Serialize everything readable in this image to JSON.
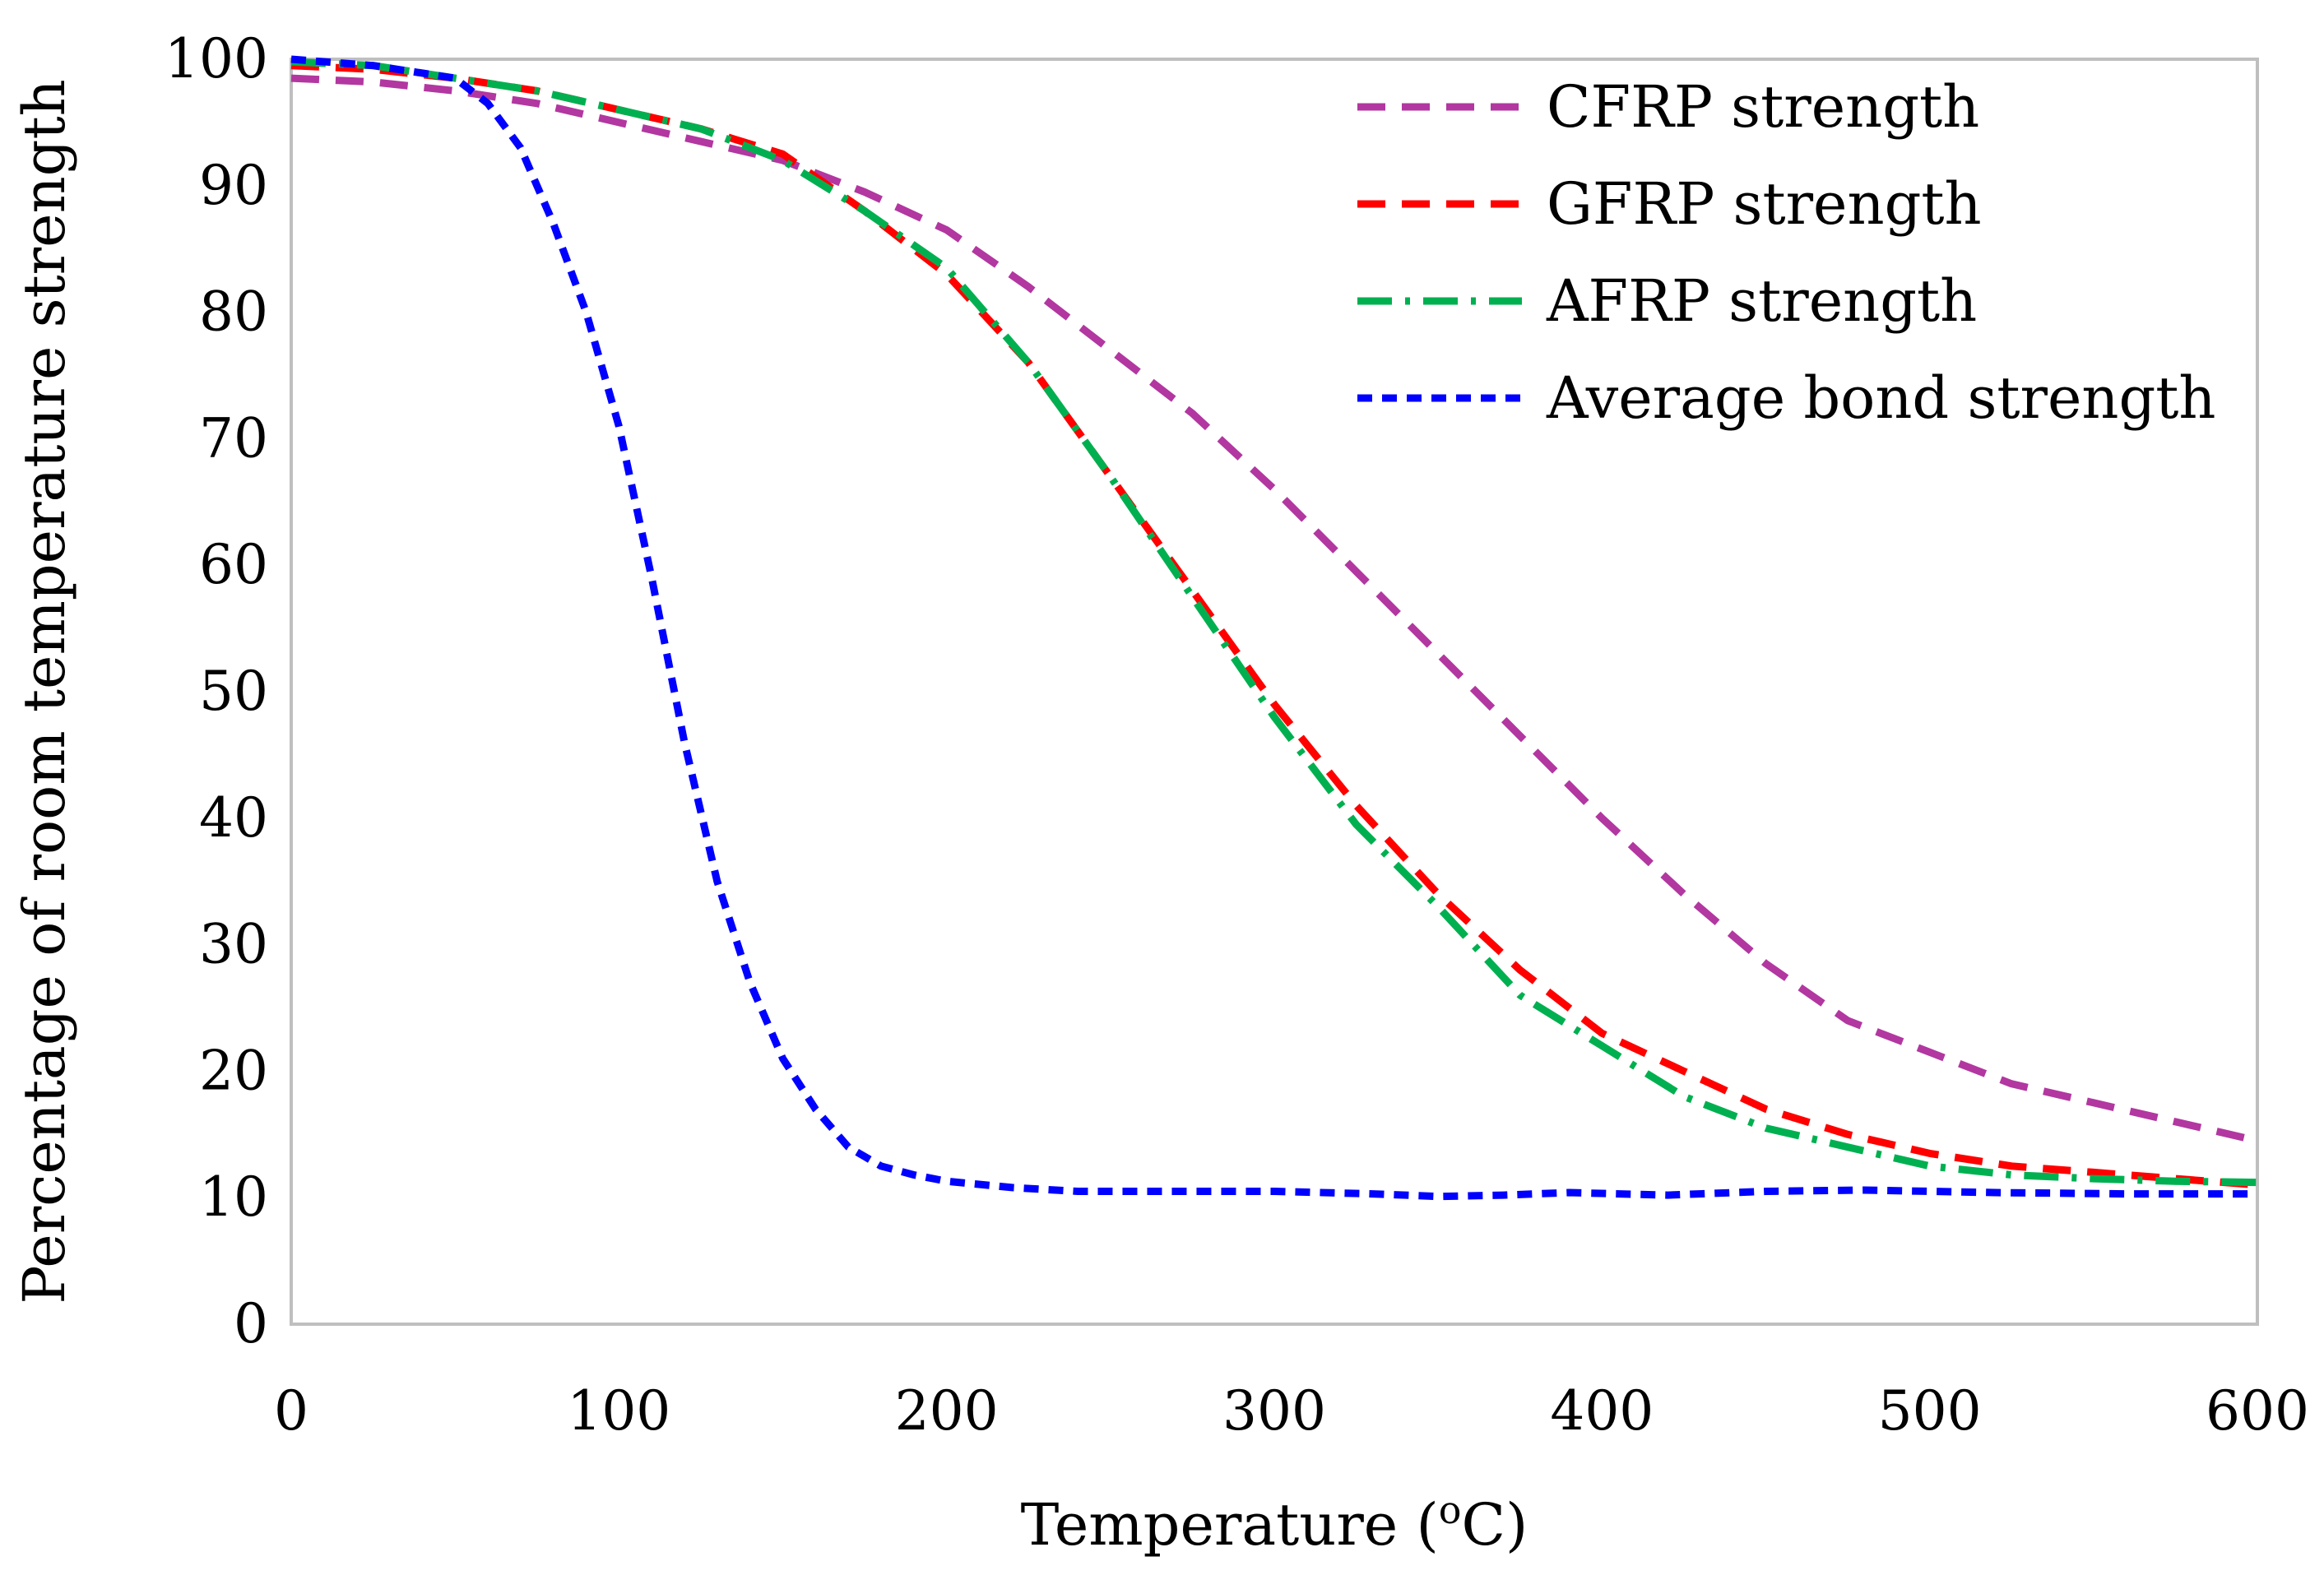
{
  "chart_data": {
    "type": "line",
    "title": "",
    "xlabel_main": "Temperature (",
    "xlabel_sup": "o",
    "xlabel_tail": "C)",
    "ylabel": "Percentage of room temperature strength",
    "xlim": [
      0,
      600
    ],
    "ylim": [
      0,
      100
    ],
    "xticks": [
      0,
      100,
      200,
      300,
      400,
      500,
      600
    ],
    "yticks": [
      0,
      10,
      20,
      30,
      40,
      50,
      60,
      70,
      80,
      90,
      100
    ],
    "grid": false,
    "legend_position": "top-right",
    "series": [
      {
        "name": "CFRP strength",
        "color": "#b237a0",
        "dash": "dash",
        "x": [
          0,
          25,
          50,
          75,
          100,
          125,
          150,
          175,
          200,
          225,
          250,
          275,
          300,
          325,
          350,
          375,
          400,
          425,
          450,
          475,
          500,
          525,
          550,
          575,
          600
        ],
        "y": [
          98.5,
          98.2,
          97.5,
          96.5,
          95,
          93.5,
          92,
          89.5,
          86.5,
          82,
          77,
          72,
          66,
          59.5,
          53,
          46.5,
          40,
          34,
          28.5,
          24,
          21.5,
          19,
          17.5,
          16,
          14.5
        ]
      },
      {
        "name": "GFRP strength",
        "color": "#ff0000",
        "dash": "dash",
        "x": [
          0,
          25,
          50,
          75,
          100,
          125,
          150,
          175,
          200,
          225,
          250,
          275,
          300,
          325,
          350,
          375,
          400,
          425,
          450,
          475,
          500,
          525,
          550,
          575,
          600
        ],
        "y": [
          99.5,
          99.2,
          98.5,
          97.5,
          96,
          94.5,
          92.5,
          88,
          83,
          76,
          67,
          58,
          49,
          41,
          34,
          28,
          23,
          20,
          17,
          15,
          13.5,
          12.5,
          12,
          11.5,
          11
        ]
      },
      {
        "name": "AFRP strength",
        "color": "#00b050",
        "dash": "dashdot",
        "x": [
          0,
          25,
          50,
          75,
          100,
          125,
          150,
          175,
          200,
          225,
          250,
          275,
          300,
          325,
          350,
          375,
          400,
          425,
          450,
          475,
          500,
          525,
          550,
          575,
          600
        ],
        "y": [
          99.8,
          99.5,
          98.5,
          97.5,
          96,
          94.5,
          92,
          88,
          83.5,
          76,
          67,
          57.5,
          48,
          39.5,
          33,
          26,
          22,
          18,
          15.5,
          14,
          12.5,
          11.8,
          11.5,
          11.3,
          11.2
        ]
      },
      {
        "name": "Average bond strength",
        "color": "#0000ff",
        "dash": "shortdash",
        "x": [
          0,
          25,
          50,
          60,
          70,
          80,
          90,
          100,
          110,
          120,
          130,
          140,
          150,
          160,
          170,
          180,
          190,
          200,
          220,
          240,
          260,
          300,
          330,
          350,
          370,
          390,
          420,
          450,
          480,
          520,
          560,
          600
        ],
        "y": [
          100,
          99.5,
          98.5,
          96.5,
          93,
          87,
          80,
          71,
          59,
          46,
          35,
          27,
          21,
          17,
          14,
          12.5,
          11.8,
          11.3,
          10.8,
          10.5,
          10.5,
          10.5,
          10.3,
          10.1,
          10.2,
          10.4,
          10.2,
          10.5,
          10.6,
          10.4,
          10.3,
          10.3
        ]
      }
    ]
  }
}
